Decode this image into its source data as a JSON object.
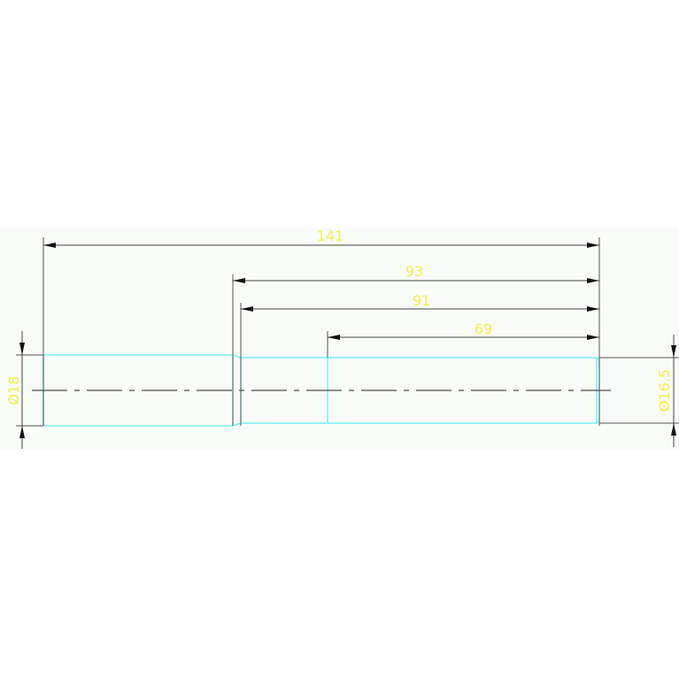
{
  "drawing": {
    "dimensions": {
      "overall_length": "141",
      "length_93": "93",
      "length_91": "91",
      "length_69": "69",
      "diameter_left": "Ø18",
      "diameter_right": "Ø16.5"
    },
    "colors": {
      "part_outline": "#5ff0f0",
      "dimension_line": "#333333",
      "dimension_text": "#f2f24a",
      "background": "#f9fbf8"
    }
  }
}
